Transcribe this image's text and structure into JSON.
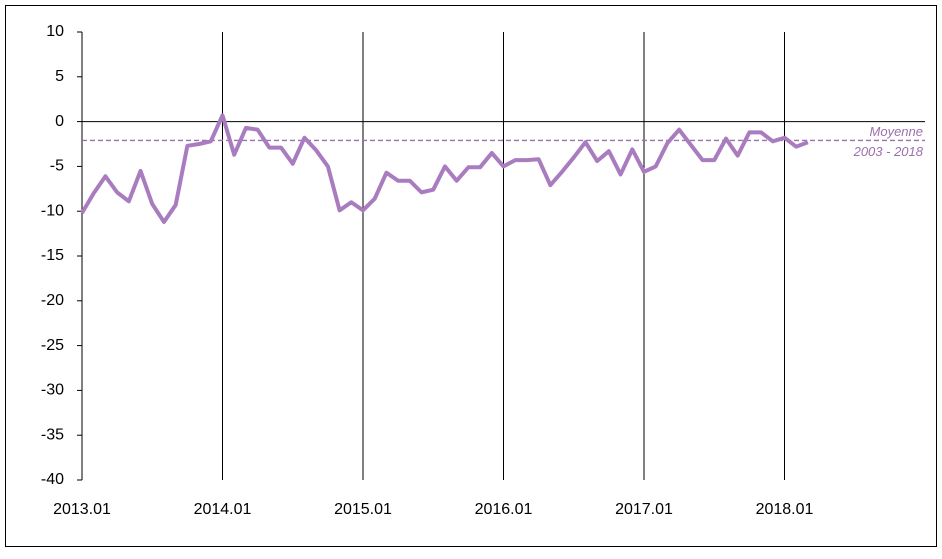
{
  "chart_data": {
    "type": "line",
    "categories": [
      "2013.01",
      null,
      null,
      null,
      null,
      null,
      null,
      null,
      null,
      null,
      null,
      null,
      "2014.01",
      null,
      null,
      null,
      null,
      null,
      null,
      null,
      null,
      null,
      null,
      null,
      "2015.01",
      null,
      null,
      null,
      null,
      null,
      null,
      null,
      null,
      null,
      null,
      null,
      "2016.01",
      null,
      null,
      null,
      null,
      null,
      null,
      null,
      null,
      null,
      null,
      null,
      "2017.01",
      null,
      null,
      null,
      null,
      null,
      null,
      null,
      null,
      null,
      null,
      null,
      "2018.01",
      null,
      null,
      null,
      null,
      null,
      null,
      null,
      null,
      null,
      null,
      null
    ],
    "series": [
      {
        "color": "#a97cc0",
        "values": [
          -10.2,
          -8,
          -6.1,
          -7.9,
          -8.9,
          -5.5,
          -9.2,
          -11.2,
          -9.3,
          -2.7,
          -2.5,
          -2.2,
          0.7,
          -3.7,
          -0.7,
          -0.9,
          -2.9,
          -2.9,
          -4.7,
          -1.8,
          -3.2,
          -5,
          -9.9,
          -9,
          -9.9,
          -8.6,
          -5.7,
          -6.6,
          -6.6,
          -7.9,
          -7.6,
          -5,
          -6.6,
          -5.1,
          -5.1,
          -3.5,
          -5,
          -4.3,
          -4.3,
          -4.2,
          -7.1,
          -5.6,
          -4,
          -2.3,
          -4.4,
          -3.3,
          -5.9,
          -3.1,
          -5.6,
          -5,
          -2.4,
          -0.9,
          -2.6,
          -4.3,
          -4.3,
          -1.9,
          -3.8,
          -1.2,
          -1.2,
          -2.2,
          -1.8,
          -2.8,
          -2.3,
          null,
          null,
          null,
          null,
          null,
          null,
          null,
          null,
          null
        ]
      }
    ],
    "average": {
      "value": -2.1,
      "label": [
        "Moyenne",
        "2003 - 2018"
      ],
      "color": "#9b6fb0"
    },
    "ylim": [
      -40,
      10
    ],
    "yticks": [
      10,
      5,
      0,
      -5,
      -10,
      -15,
      -20,
      -25,
      -30,
      -35,
      -40
    ],
    "grid": true
  }
}
